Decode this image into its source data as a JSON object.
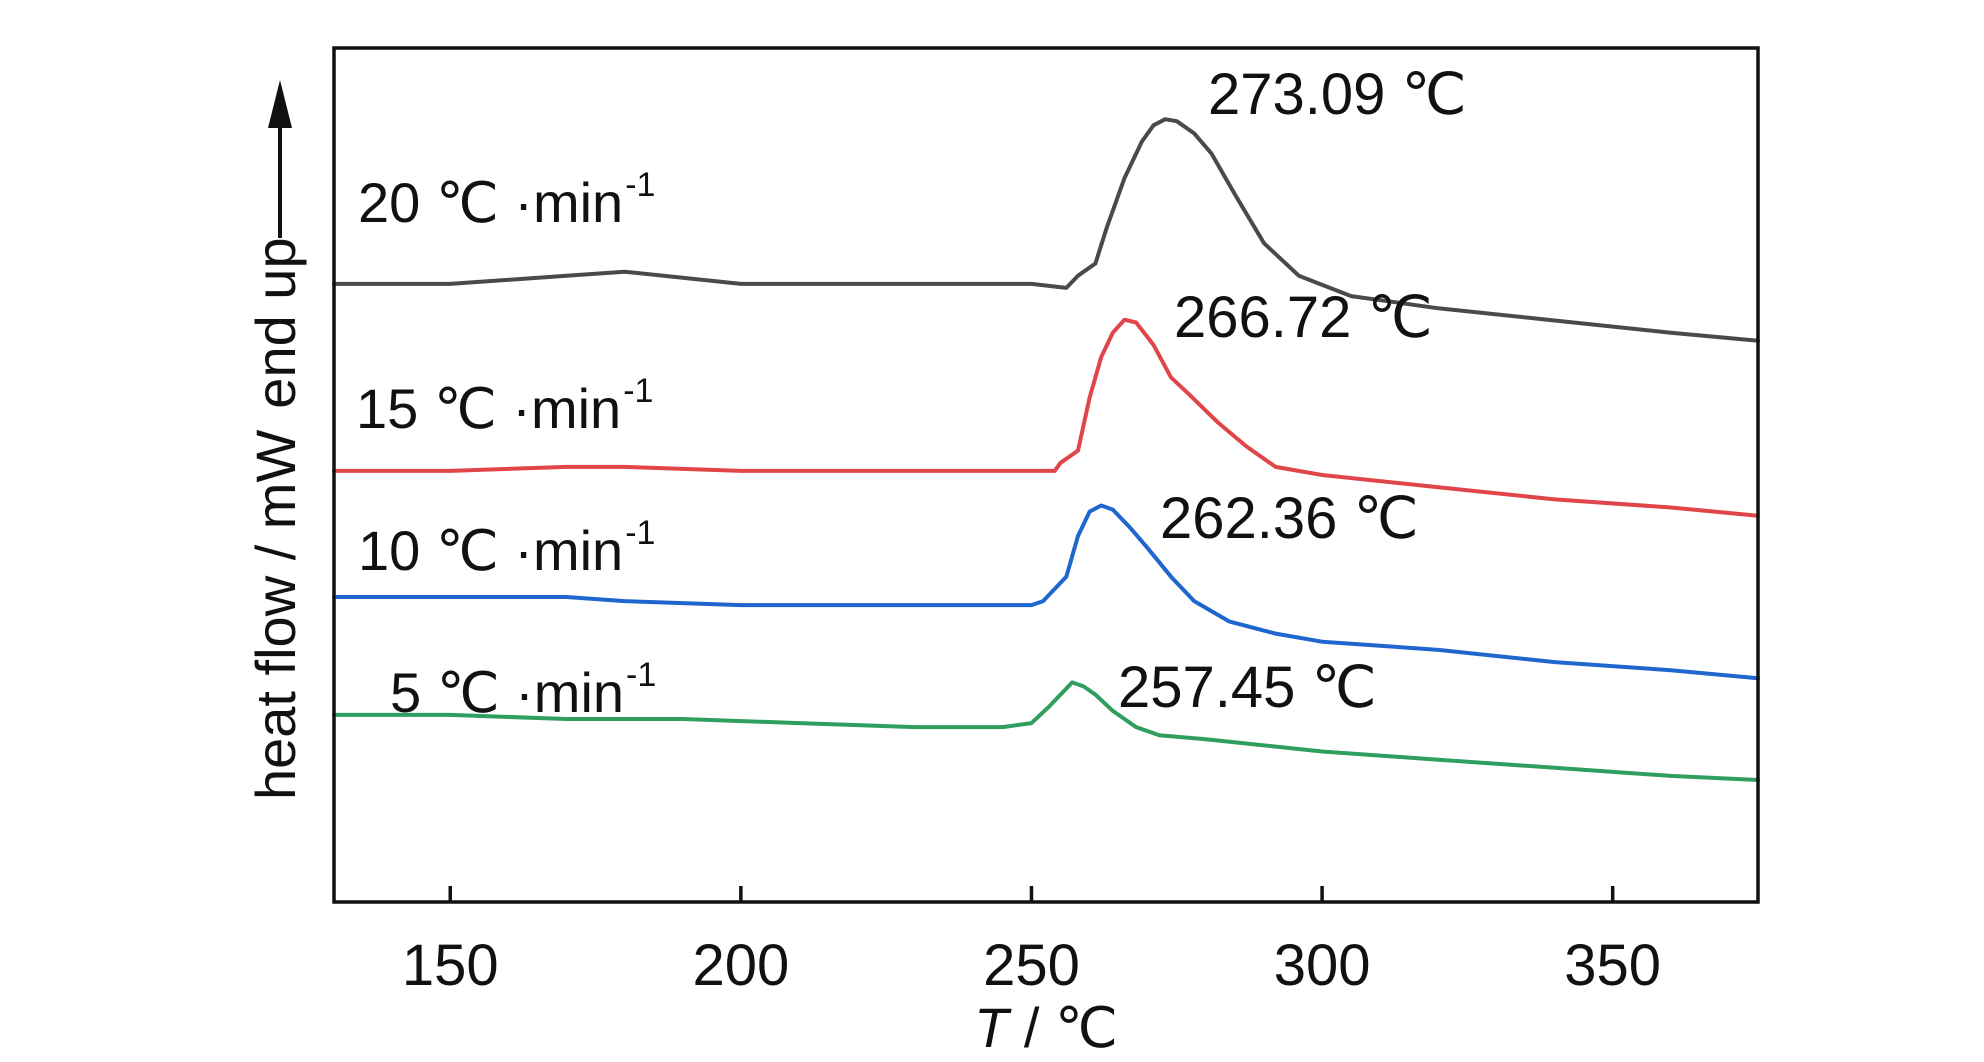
{
  "chart_data": {
    "type": "line",
    "xlabel_italic": "T",
    "xlabel_rest": " / ℃",
    "ylabel_main": "heat flow / mW",
    "ylabel_extra": "end up",
    "xlim": [
      130,
      375
    ],
    "xticks": [
      150,
      200,
      250,
      300,
      350
    ],
    "tick_labels": [
      "150",
      "200",
      "250",
      "300",
      "350"
    ],
    "grid": false,
    "series": [
      {
        "name": "20 ℃ ·min",
        "name_sup": "-1",
        "color": "#4a4a4a",
        "peak_label": "273.09  ℃",
        "points": [
          [
            130,
            0.8
          ],
          [
            150,
            0.8
          ],
          [
            170,
            0.82
          ],
          [
            180,
            0.83
          ],
          [
            200,
            0.8
          ],
          [
            230,
            0.8
          ],
          [
            250,
            0.8
          ],
          [
            256,
            0.79
          ],
          [
            258,
            0.82
          ],
          [
            261,
            0.85
          ],
          [
            263,
            0.94
          ],
          [
            266,
            1.06
          ],
          [
            269,
            1.15
          ],
          [
            271,
            1.19
          ],
          [
            273,
            1.205
          ],
          [
            275,
            1.2
          ],
          [
            278,
            1.17
          ],
          [
            281,
            1.12
          ],
          [
            285,
            1.02
          ],
          [
            290,
            0.9
          ],
          [
            296,
            0.82
          ],
          [
            305,
            0.77
          ],
          [
            320,
            0.74
          ],
          [
            340,
            0.71
          ],
          [
            360,
            0.68
          ],
          [
            375,
            0.66
          ]
        ]
      },
      {
        "name": "15 ℃ ·min",
        "name_sup": "-1",
        "color": "#e04549",
        "peak_label": "266.72 ℃",
        "points": [
          [
            130,
            0.34
          ],
          [
            150,
            0.34
          ],
          [
            170,
            0.35
          ],
          [
            180,
            0.35
          ],
          [
            200,
            0.34
          ],
          [
            230,
            0.34
          ],
          [
            250,
            0.34
          ],
          [
            254,
            0.34
          ],
          [
            255,
            0.36
          ],
          [
            258,
            0.39
          ],
          [
            260,
            0.52
          ],
          [
            262,
            0.62
          ],
          [
            264,
            0.68
          ],
          [
            266,
            0.712
          ],
          [
            268,
            0.705
          ],
          [
            271,
            0.65
          ],
          [
            274,
            0.57
          ],
          [
            277,
            0.53
          ],
          [
            282,
            0.46
          ],
          [
            287,
            0.4
          ],
          [
            292,
            0.35
          ],
          [
            300,
            0.33
          ],
          [
            320,
            0.3
          ],
          [
            340,
            0.27
          ],
          [
            360,
            0.25
          ],
          [
            375,
            0.23
          ]
        ]
      },
      {
        "name": "10 ℃ ·min",
        "name_sup": "-1",
        "color": "#1f66cf",
        "peak_label": "262.36  ℃",
        "points": [
          [
            130,
            0.03
          ],
          [
            150,
            0.03
          ],
          [
            170,
            0.03
          ],
          [
            180,
            0.02
          ],
          [
            200,
            0.01
          ],
          [
            230,
            0.01
          ],
          [
            250,
            0.01
          ],
          [
            252,
            0.02
          ],
          [
            254,
            0.05
          ],
          [
            256,
            0.08
          ],
          [
            258,
            0.18
          ],
          [
            260,
            0.24
          ],
          [
            262,
            0.255
          ],
          [
            264,
            0.245
          ],
          [
            267,
            0.2
          ],
          [
            270,
            0.15
          ],
          [
            274,
            0.08
          ],
          [
            278,
            0.02
          ],
          [
            284,
            -0.03
          ],
          [
            292,
            -0.06
          ],
          [
            300,
            -0.08
          ],
          [
            320,
            -0.1
          ],
          [
            340,
            -0.13
          ],
          [
            360,
            -0.15
          ],
          [
            375,
            -0.17
          ]
        ]
      },
      {
        "name": "5 ℃ ·min",
        "name_sup": "-1",
        "color": "#2f9e5e",
        "peak_label": "257.45 ℃",
        "points": [
          [
            130,
            -0.26
          ],
          [
            150,
            -0.26
          ],
          [
            170,
            -0.27
          ],
          [
            190,
            -0.27
          ],
          [
            210,
            -0.28
          ],
          [
            230,
            -0.29
          ],
          [
            245,
            -0.29
          ],
          [
            250,
            -0.28
          ],
          [
            253,
            -0.24
          ],
          [
            255,
            -0.21
          ],
          [
            257,
            -0.18
          ],
          [
            259,
            -0.19
          ],
          [
            261,
            -0.21
          ],
          [
            264,
            -0.25
          ],
          [
            268,
            -0.29
          ],
          [
            272,
            -0.31
          ],
          [
            280,
            -0.32
          ],
          [
            300,
            -0.35
          ],
          [
            320,
            -0.37
          ],
          [
            340,
            -0.39
          ],
          [
            360,
            -0.41
          ],
          [
            375,
            -0.42
          ]
        ]
      }
    ]
  }
}
